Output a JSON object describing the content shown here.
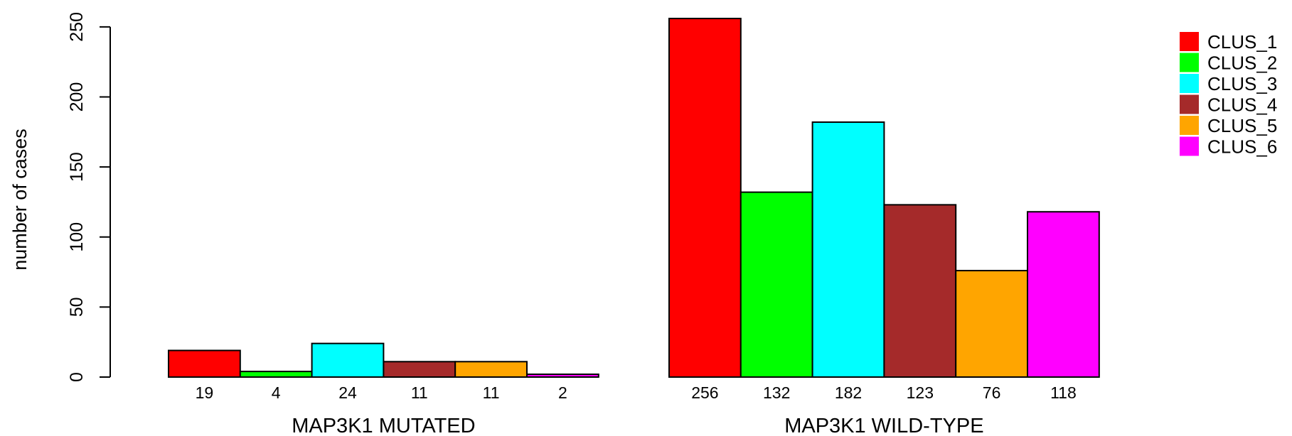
{
  "chart_data": {
    "type": "bar",
    "ylabel": "number of cases",
    "ylim": [
      0,
      262
    ],
    "yticks": [
      0,
      50,
      100,
      150,
      200,
      250
    ],
    "groups": [
      {
        "label": "MAP3K1 MUTATED",
        "values": [
          19,
          4,
          24,
          11,
          11,
          2
        ]
      },
      {
        "label": "MAP3K1 WILD-TYPE",
        "values": [
          256,
          132,
          182,
          123,
          76,
          118
        ]
      }
    ],
    "series": [
      {
        "name": "CLUS_1",
        "color": "#ff0000"
      },
      {
        "name": "CLUS_2",
        "color": "#00ff00"
      },
      {
        "name": "CLUS_3",
        "color": "#00ffff"
      },
      {
        "name": "CLUS_4",
        "color": "#a52a2a"
      },
      {
        "name": "CLUS_5",
        "color": "#ffa500"
      },
      {
        "name": "CLUS_6",
        "color": "#ff00ff"
      }
    ],
    "legend_position": "top-right",
    "grid": false
  }
}
